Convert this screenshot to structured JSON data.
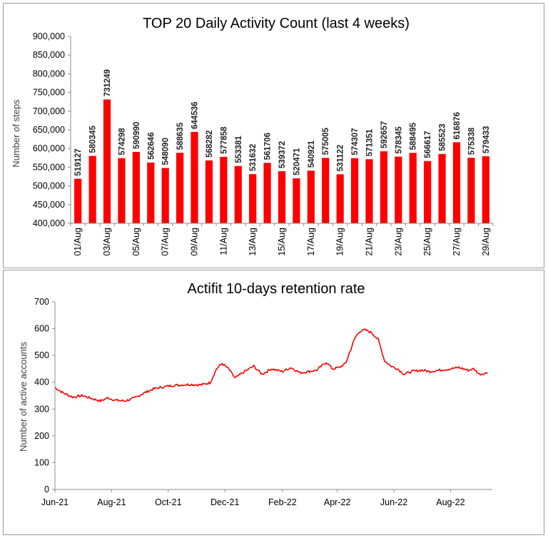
{
  "chart_data": [
    {
      "type": "bar",
      "title": "TOP 20 Daily Activity Count (last 4 weeks)",
      "ylabel": "Number of steps",
      "xlabel": "",
      "ylim": [
        400000,
        900000
      ],
      "yticks": [
        400000,
        450000,
        500000,
        550000,
        600000,
        650000,
        700000,
        750000,
        800000,
        850000,
        900000
      ],
      "ytick_labels": [
        "400,000",
        "450,000",
        "500,000",
        "550,000",
        "600,000",
        "650,000",
        "700,000",
        "750,000",
        "800,000",
        "850,000",
        "900,000"
      ],
      "categories": [
        "01/Aug",
        "02/Aug",
        "03/Aug",
        "04/Aug",
        "05/Aug",
        "06/Aug",
        "07/Aug",
        "08/Aug",
        "09/Aug",
        "10/Aug",
        "11/Aug",
        "12/Aug",
        "13/Aug",
        "14/Aug",
        "15/Aug",
        "16/Aug",
        "17/Aug",
        "18/Aug",
        "19/Aug",
        "20/Aug",
        "21/Aug",
        "22/Aug",
        "23/Aug",
        "24/Aug",
        "25/Aug",
        "26/Aug",
        "27/Aug",
        "28/Aug",
        "29/Aug"
      ],
      "category_labels_shown": [
        "01/Aug",
        "",
        "03/Aug",
        "",
        "05/Aug",
        "",
        "07/Aug",
        "",
        "09/Aug",
        "",
        "11/Aug",
        "",
        "13/Aug",
        "",
        "15/Aug",
        "",
        "17/Aug",
        "",
        "19/Aug",
        "",
        "21/Aug",
        "",
        "23/Aug",
        "",
        "25/Aug",
        "",
        "27/Aug",
        "",
        "29/Aug"
      ],
      "values": [
        519127,
        580345,
        731249,
        574298,
        590990,
        562646,
        548090,
        588635,
        644536,
        568282,
        577858,
        553381,
        531632,
        561706,
        539372,
        520471,
        540921,
        575005,
        531122,
        574307,
        571351,
        592657,
        578345,
        588495,
        566617,
        585523,
        616876,
        575338,
        579433
      ],
      "data_labels": [
        "519127",
        "580345",
        "731249",
        "574298",
        "590990",
        "562646",
        "548090",
        "588635",
        "644536",
        "568282",
        "577858",
        "553381",
        "531632",
        "561706",
        "539372",
        "520471",
        "540921",
        "575005",
        "531122",
        "574307",
        "571351",
        "592657",
        "578345",
        "588495",
        "566617",
        "585523",
        "616876",
        "575338",
        "579433"
      ],
      "color": "#ff0000",
      "grid": false,
      "legend": "none"
    },
    {
      "type": "line",
      "title": "Actifit 10-days retention rate",
      "ylabel": "Number of active accounts",
      "xlabel": "",
      "ylim": [
        0,
        700
      ],
      "yticks": [
        0,
        100,
        200,
        300,
        400,
        500,
        600,
        700
      ],
      "ytick_labels": [
        "0",
        "100",
        "200",
        "300",
        "400",
        "500",
        "600",
        "700"
      ],
      "x_range": [
        "2021-06-01",
        "2022-09-15"
      ],
      "xticks": [
        "2021-06-01",
        "2021-08-01",
        "2021-10-01",
        "2021-12-01",
        "2022-02-01",
        "2022-04-01",
        "2022-06-01",
        "2022-08-01"
      ],
      "xtick_labels": [
        "Jun-21",
        "Aug-21",
        "Oct-21",
        "Dec-21",
        "Feb-22",
        "Apr-22",
        "Jun-22",
        "Aug-22"
      ],
      "series": [
        {
          "x": [
            "2021-06-01",
            "2021-06-10",
            "2021-06-20",
            "2021-07-01",
            "2021-07-10",
            "2021-07-20",
            "2021-07-28",
            "2021-08-05",
            "2021-08-15",
            "2021-08-25",
            "2021-09-05",
            "2021-09-15",
            "2021-09-25",
            "2021-10-05",
            "2021-10-15",
            "2021-10-25",
            "2021-11-05",
            "2021-11-15",
            "2021-11-22",
            "2021-11-28",
            "2021-12-05",
            "2021-12-12",
            "2021-12-20",
            "2022-01-01",
            "2022-01-10",
            "2022-01-20",
            "2022-02-01",
            "2022-02-10",
            "2022-02-20",
            "2022-03-01",
            "2022-03-10",
            "2022-03-20",
            "2022-03-27",
            "2022-04-03",
            "2022-04-10",
            "2022-04-20",
            "2022-04-25",
            "2022-05-01",
            "2022-05-08",
            "2022-05-15",
            "2022-05-22",
            "2022-05-29",
            "2022-06-05",
            "2022-06-12",
            "2022-06-20",
            "2022-07-01",
            "2022-07-10",
            "2022-07-20",
            "2022-08-01",
            "2022-08-10",
            "2022-08-20",
            "2022-08-26",
            "2022-09-01",
            "2022-09-10"
          ],
          "values": [
            380,
            360,
            345,
            350,
            340,
            330,
            342,
            333,
            330,
            340,
            360,
            375,
            382,
            388,
            390,
            392,
            390,
            398,
            450,
            470,
            450,
            415,
            435,
            460,
            430,
            450,
            440,
            455,
            435,
            440,
            445,
            475,
            450,
            455,
            470,
            565,
            590,
            595,
            585,
            560,
            480,
            460,
            450,
            430,
            440,
            445,
            440,
            445,
            450,
            455,
            445,
            450,
            430,
            435
          ]
        }
      ],
      "color": "#ff0000",
      "grid": false,
      "legend": "none"
    }
  ]
}
